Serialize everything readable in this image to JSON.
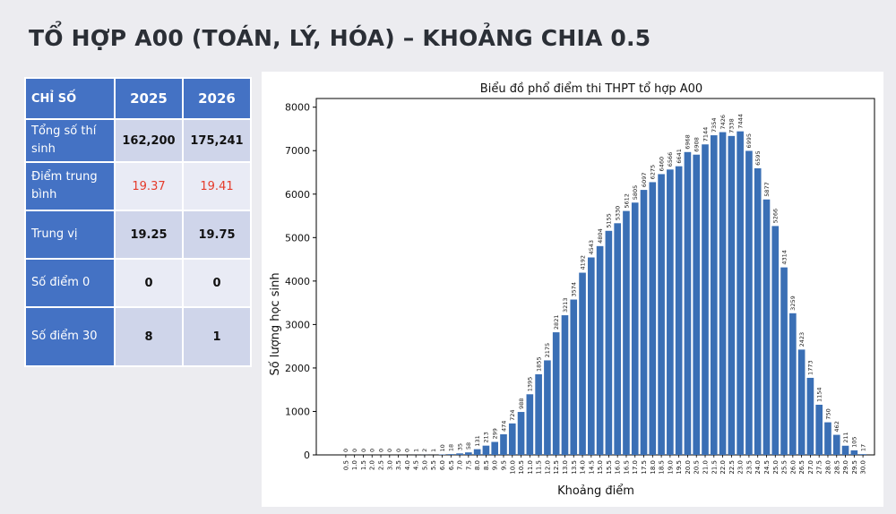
{
  "page_title": "TỔ HỢP A00 (TOÁN, LÝ, HÓA) – KHOẢNG CHIA 0.5",
  "table": {
    "header": [
      "CHỈ SỐ",
      "2025",
      "2026"
    ],
    "rows": [
      {
        "label": "Tổng số thí sinh",
        "v2025": "162,200",
        "v2026": "175,241"
      },
      {
        "label": "Điểm trung bình",
        "v2025": "19.37",
        "v2026": "19.41"
      },
      {
        "label": "Trung vị",
        "v2025": "19.25",
        "v2026": "19.75"
      },
      {
        "label": "Số điểm 0",
        "v2025": "0",
        "v2026": "0"
      },
      {
        "label": "Số điểm 30",
        "v2025": "8",
        "v2026": "1"
      }
    ],
    "highlight_color": "#e53b2b",
    "header_color": "#4472c4"
  },
  "chart_data": {
    "type": "bar",
    "title": "Biểu đồ phổ điểm thi THPT tổ hợp A00",
    "xlabel": "Khoảng điểm",
    "ylabel": "Số lượng học sinh",
    "ylim": [
      0,
      8200
    ],
    "yticks": [
      0,
      1000,
      2000,
      3000,
      4000,
      5000,
      6000,
      7000,
      8000
    ],
    "bar_color": "#3a6fb5",
    "categories": [
      "0.5",
      "1.0",
      "1.5",
      "2.0",
      "2.5",
      "3.0",
      "3.5",
      "4.0",
      "4.5",
      "5.0",
      "5.5",
      "6.0",
      "6.5",
      "7.0",
      "7.5",
      "8.0",
      "8.5",
      "9.0",
      "9.5",
      "10.0",
      "10.5",
      "11.0",
      "11.5",
      "12.0",
      "12.5",
      "13.0",
      "13.5",
      "14.0",
      "14.5",
      "15.0",
      "15.5",
      "16.0",
      "16.5",
      "17.0",
      "17.5",
      "18.0",
      "18.5",
      "19.0",
      "19.5",
      "20.0",
      "20.5",
      "21.0",
      "21.5",
      "22.0",
      "22.5",
      "23.0",
      "23.5",
      "24.0",
      "24.5",
      "25.0",
      "25.5",
      "26.0",
      "26.5",
      "27.0",
      "27.5",
      "28.0",
      "28.5",
      "29.0",
      "29.5",
      "30.0"
    ],
    "values": [
      0,
      0,
      0,
      0,
      0,
      0,
      0,
      0,
      1,
      2,
      1,
      10,
      18,
      35,
      58,
      131,
      213,
      299,
      474,
      724,
      988,
      1395,
      1855,
      2175,
      2821,
      3213,
      3574,
      4192,
      4543,
      4804,
      5155,
      5330,
      5612,
      5805,
      6097,
      6275,
      6460,
      6566,
      6641,
      6968,
      6908,
      7144,
      7354,
      7426,
      7338,
      7444,
      6995,
      6595,
      5877,
      5266,
      4314,
      3259,
      2423,
      1773,
      1154,
      750,
      462,
      211,
      105,
      17
    ],
    "data_labels": [
      "0",
      "0",
      "0",
      "0",
      "0",
      "0",
      "0",
      "0",
      "1",
      "2",
      "1",
      "10",
      "18",
      "35",
      "58",
      "131",
      "213",
      "299",
      "474",
      "724",
      "988",
      "1395",
      "1855",
      "2175",
      "2821",
      "3213",
      "3574",
      "4192",
      "4543",
      "4804",
      "5155",
      "5330",
      "5612",
      "5805",
      "6097",
      "6275",
      "6460",
      "6566",
      "6641",
      "6968",
      "6908",
      "7144",
      "7354",
      "7426",
      "7338",
      "7444",
      "6995",
      "6595",
      "5877",
      "5266",
      "4314",
      "3259",
      "2423",
      "1773",
      "1154",
      "750",
      "462",
      "211",
      "105",
      "17"
    ],
    "grid": false,
    "legend": false
  }
}
